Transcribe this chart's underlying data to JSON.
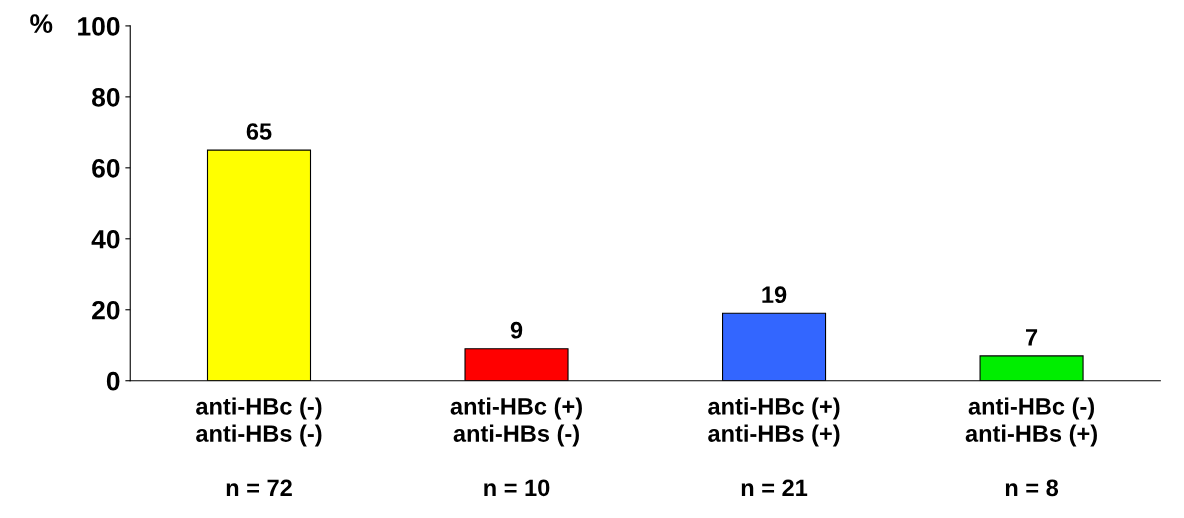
{
  "chart_data": {
    "type": "bar",
    "ylabel": "%",
    "categories": [
      "anti-HBc (-)\nanti-HBs (-)\n\nn = 72",
      "anti-HBc (+)\nanti-HBs (-)\n\nn = 10",
      "anti-HBc (+)\nanti-HBs (+)\n\nn = 21",
      "anti-HBc (-)\nanti-HBs (+)\n\nn = 8"
    ],
    "values": [
      65,
      9,
      19,
      7
    ],
    "colors": [
      "#ffff00",
      "#ff0000",
      "#3366ff",
      "#00ee00"
    ],
    "ylim": [
      0,
      100
    ],
    "yticks": [
      0,
      20,
      40,
      60,
      80,
      100
    ],
    "data_labels": true,
    "grid": false,
    "legend": false
  }
}
